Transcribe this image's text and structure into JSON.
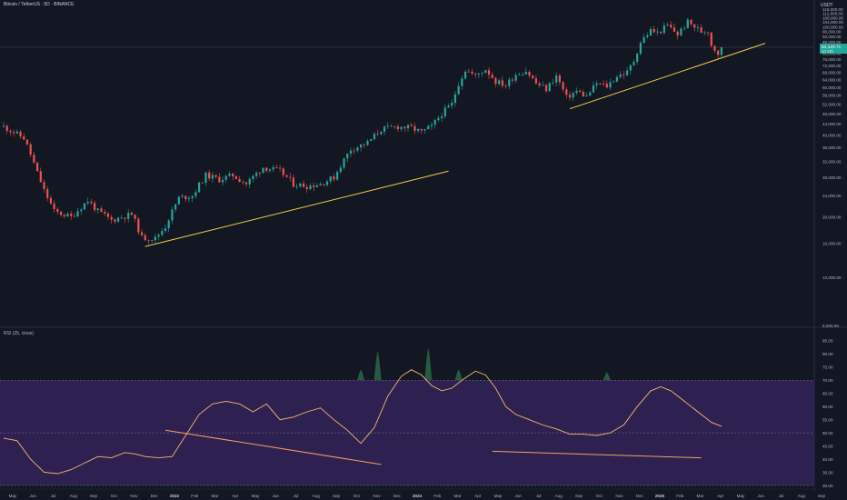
{
  "header": {
    "title": "Bitcoin / TetherUS · 5D · BINANCE",
    "currency": "USDT",
    "rsi_label": "RSI (25, close)"
  },
  "colors": {
    "background": "#131722",
    "candle_up": "#26a69a",
    "candle_down": "#ef5350",
    "trendline": "#f7c948",
    "rsi_line": "#f5b86b",
    "rsi_band": "#3a2463",
    "rsi_divergence": "#f5a05a",
    "price_tag": "#26a69a"
  },
  "chart_data": [
    {
      "type": "candlestick",
      "scale": "log",
      "y_ticks": [
        116000,
        112000,
        108000,
        104000,
        100000,
        96000,
        92000,
        88000,
        80000,
        76000,
        72000,
        68000,
        64000,
        60000,
        56000,
        52000,
        48000,
        44000,
        40000,
        36000,
        32000,
        28000,
        24000,
        20000,
        16000,
        12000,
        8000
      ],
      "y_tick_labels": [
        "116,000.00",
        "112,000.00",
        "108,000.00",
        "104,000.00",
        "100,000.00",
        "96,000.00",
        "92,000.00",
        "88,000.00",
        "80,000.00",
        "76,000.00",
        "72,000.00",
        "68,000.00",
        "64,000.00",
        "60,000.00",
        "56,000.00",
        "52,000.00",
        "48,000.00",
        "44,000.00",
        "40,000.00",
        "36,000.00",
        "32,000.00",
        "28,000.00",
        "24,000.00",
        "20,000.00",
        "16,000.00",
        "12,000.00",
        "8,000.00"
      ],
      "current_price": 84123.71,
      "current_price_label": "84,123.71",
      "countdown_label": "1d 13h",
      "ylim": [
        8000,
        118000
      ],
      "x_labels": [
        "May",
        "Jun",
        "Jul",
        "Aug",
        "Sep",
        "Oct",
        "Nov",
        "Dec",
        "2022",
        "Feb",
        "Mar",
        "Apr",
        "May",
        "Jun",
        "Jul",
        "Aug",
        "Sep",
        "Oct",
        "Nov",
        "Dec",
        "2024",
        "Feb",
        "Mar",
        "Apr",
        "May",
        "Jun",
        "Jul",
        "Aug",
        "Sep",
        "Oct",
        "Nov",
        "Dec",
        "2025",
        "Feb",
        "Mar",
        "Apr",
        "May",
        "Jun",
        "Jul",
        "Aug",
        "Sep"
      ],
      "close_path": [
        {
          "t": 0.0,
          "v": 43000
        },
        {
          "t": 3.0,
          "v": 39000
        },
        {
          "t": 5.0,
          "v": 29000
        },
        {
          "t": 6.0,
          "v": 25000
        },
        {
          "t": 7.5,
          "v": 21000
        },
        {
          "t": 10.0,
          "v": 20000
        },
        {
          "t": 12.5,
          "v": 23000
        },
        {
          "t": 14.0,
          "v": 21000
        },
        {
          "t": 16.0,
          "v": 19500
        },
        {
          "t": 19.0,
          "v": 20500
        },
        {
          "t": 20.5,
          "v": 16800
        },
        {
          "t": 22.5,
          "v": 16700
        },
        {
          "t": 24.0,
          "v": 18500
        },
        {
          "t": 26.0,
          "v": 23500
        },
        {
          "t": 28.0,
          "v": 24000
        },
        {
          "t": 30.0,
          "v": 28500
        },
        {
          "t": 32.0,
          "v": 27500
        },
        {
          "t": 34.0,
          "v": 28500
        },
        {
          "t": 36.0,
          "v": 26500
        },
        {
          "t": 38.5,
          "v": 30500
        },
        {
          "t": 41.0,
          "v": 29500
        },
        {
          "t": 43.0,
          "v": 26500
        },
        {
          "t": 45.0,
          "v": 26000
        },
        {
          "t": 47.0,
          "v": 26500
        },
        {
          "t": 49.0,
          "v": 28000
        },
        {
          "t": 51.5,
          "v": 35500
        },
        {
          "t": 54.0,
          "v": 37500
        },
        {
          "t": 56.0,
          "v": 42000
        },
        {
          "t": 58.5,
          "v": 43000
        },
        {
          "t": 60.5,
          "v": 42500
        },
        {
          "t": 62.0,
          "v": 41000
        },
        {
          "t": 63.5,
          "v": 43000
        },
        {
          "t": 65.0,
          "v": 48000
        },
        {
          "t": 66.5,
          "v": 52000
        },
        {
          "t": 67.5,
          "v": 62000
        },
        {
          "t": 68.5,
          "v": 69500
        },
        {
          "t": 70.0,
          "v": 66000
        },
        {
          "t": 71.5,
          "v": 70000
        },
        {
          "t": 73.0,
          "v": 63000
        },
        {
          "t": 74.5,
          "v": 61000
        },
        {
          "t": 76.0,
          "v": 67000
        },
        {
          "t": 77.5,
          "v": 69000
        },
        {
          "t": 79.0,
          "v": 62000
        },
        {
          "t": 80.5,
          "v": 59000
        },
        {
          "t": 82.0,
          "v": 66000
        },
        {
          "t": 83.5,
          "v": 55000
        },
        {
          "t": 85.0,
          "v": 58000
        },
        {
          "t": 86.5,
          "v": 55500
        },
        {
          "t": 88.0,
          "v": 62000
        },
        {
          "t": 89.5,
          "v": 60500
        },
        {
          "t": 91.0,
          "v": 66000
        },
        {
          "t": 92.5,
          "v": 68000
        },
        {
          "t": 93.5,
          "v": 75000
        },
        {
          "t": 94.5,
          "v": 88000
        },
        {
          "t": 96.0,
          "v": 97000
        },
        {
          "t": 97.0,
          "v": 95000
        },
        {
          "t": 98.5,
          "v": 101000
        },
        {
          "t": 100.0,
          "v": 94000
        },
        {
          "t": 101.5,
          "v": 104000
        },
        {
          "t": 102.5,
          "v": 100000
        },
        {
          "t": 103.5,
          "v": 96000
        },
        {
          "t": 104.5,
          "v": 97000
        },
        {
          "t": 105.0,
          "v": 86000
        },
        {
          "t": 106.0,
          "v": 80000
        },
        {
          "t": 106.5,
          "v": 84123.71
        }
      ],
      "trendlines": [
        {
          "from": {
            "t": 21.0,
            "v": 15600
          },
          "to": {
            "t": 66.0,
            "v": 29500
          }
        },
        {
          "from": {
            "t": 84.0,
            "v": 50000
          },
          "to": {
            "t": 113.0,
            "v": 87000
          }
        }
      ]
    },
    {
      "type": "line",
      "name": "RSI (25, close)",
      "ylim": [
        30,
        86
      ],
      "y_ticks": [
        85,
        80,
        75,
        70,
        65,
        60,
        55,
        50,
        45,
        40,
        35,
        30
      ],
      "y_tick_labels": [
        "85.00",
        "80.00",
        "75.00",
        "70.00",
        "65.00",
        "60.00",
        "55.00",
        "50.00",
        "45.00",
        "40.00",
        "35.00",
        "30.00"
      ],
      "overbought": 70,
      "oversold": 30,
      "midline": 50,
      "values_path": [
        {
          "t": 0.0,
          "v": 48
        },
        {
          "t": 2.0,
          "v": 47
        },
        {
          "t": 4.0,
          "v": 40
        },
        {
          "t": 6.0,
          "v": 35
        },
        {
          "t": 8.0,
          "v": 34.5
        },
        {
          "t": 10.0,
          "v": 36
        },
        {
          "t": 12.0,
          "v": 38.5
        },
        {
          "t": 14.0,
          "v": 41
        },
        {
          "t": 16.0,
          "v": 40.5
        },
        {
          "t": 18.0,
          "v": 42.5
        },
        {
          "t": 19.5,
          "v": 42
        },
        {
          "t": 21.0,
          "v": 41
        },
        {
          "t": 23.0,
          "v": 40.5
        },
        {
          "t": 25.0,
          "v": 41
        },
        {
          "t": 27.0,
          "v": 49
        },
        {
          "t": 29.0,
          "v": 57
        },
        {
          "t": 31.0,
          "v": 61
        },
        {
          "t": 33.0,
          "v": 62
        },
        {
          "t": 35.0,
          "v": 61
        },
        {
          "t": 37.0,
          "v": 58
        },
        {
          "t": 39.0,
          "v": 61
        },
        {
          "t": 41.0,
          "v": 55
        },
        {
          "t": 43.0,
          "v": 56
        },
        {
          "t": 45.0,
          "v": 58
        },
        {
          "t": 47.0,
          "v": 59.5
        },
        {
          "t": 49.0,
          "v": 55
        },
        {
          "t": 51.0,
          "v": 51
        },
        {
          "t": 53.0,
          "v": 46
        },
        {
          "t": 55.0,
          "v": 52
        },
        {
          "t": 57.0,
          "v": 64
        },
        {
          "t": 59.0,
          "v": 71.5
        },
        {
          "t": 60.5,
          "v": 74
        },
        {
          "t": 62.0,
          "v": 72
        },
        {
          "t": 63.5,
          "v": 68
        },
        {
          "t": 65.0,
          "v": 66
        },
        {
          "t": 66.5,
          "v": 67
        },
        {
          "t": 68.0,
          "v": 70
        },
        {
          "t": 70.0,
          "v": 73.5
        },
        {
          "t": 71.5,
          "v": 72
        },
        {
          "t": 73.0,
          "v": 67
        },
        {
          "t": 74.5,
          "v": 60
        },
        {
          "t": 76.0,
          "v": 57
        },
        {
          "t": 78.0,
          "v": 55
        },
        {
          "t": 80.0,
          "v": 53
        },
        {
          "t": 82.0,
          "v": 51.5
        },
        {
          "t": 84.0,
          "v": 49.5
        },
        {
          "t": 86.0,
          "v": 49.5
        },
        {
          "t": 88.0,
          "v": 49
        },
        {
          "t": 90.0,
          "v": 50
        },
        {
          "t": 92.0,
          "v": 53
        },
        {
          "t": 94.0,
          "v": 60
        },
        {
          "t": 96.0,
          "v": 66
        },
        {
          "t": 97.5,
          "v": 67.5
        },
        {
          "t": 99.0,
          "v": 66
        },
        {
          "t": 100.5,
          "v": 63
        },
        {
          "t": 102.0,
          "v": 60
        },
        {
          "t": 103.5,
          "v": 57
        },
        {
          "t": 105.0,
          "v": 54
        },
        {
          "t": 106.5,
          "v": 52.5
        }
      ],
      "divergence_lines": [
        {
          "from": {
            "t": 24.0,
            "v": 51
          },
          "to": {
            "t": 56.0,
            "v": 38
          }
        },
        {
          "from": {
            "t": 72.5,
            "v": 43
          },
          "to": {
            "t": 103.5,
            "v": 40.5
          }
        }
      ],
      "spikes": [
        {
          "t": 53.0,
          "peak": 74
        },
        {
          "t": 55.5,
          "peak": 81
        },
        {
          "t": 63.0,
          "peak": 82
        },
        {
          "t": 67.5,
          "peak": 74
        },
        {
          "t": 89.5,
          "peak": 73
        }
      ]
    }
  ]
}
